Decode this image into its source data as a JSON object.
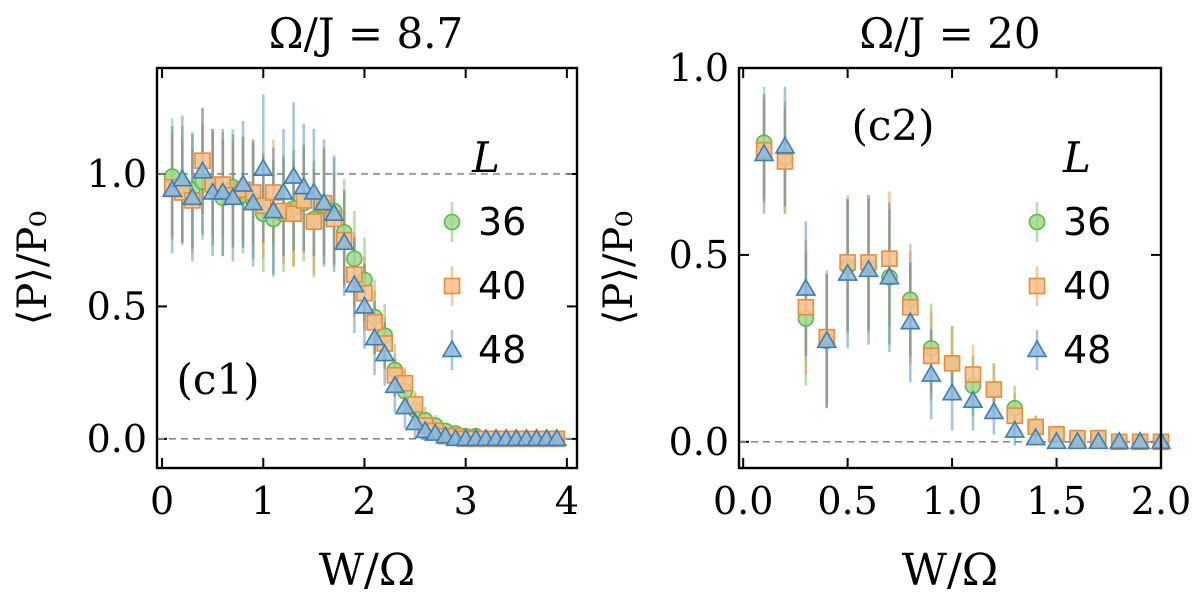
{
  "colors": {
    "s36": "#5db848",
    "s36_fill": "#9fd88c",
    "s40": "#f08a35",
    "s40_fill": "#f8c08c",
    "s48": "#3b7fb3",
    "s48_fill": "#8ab9de",
    "refline": "#8a8a8a"
  },
  "chart_data": [
    {
      "type": "scatter",
      "panel_label": "(c1)",
      "title": "Ω/J = 8.7",
      "xlabel": "W/Ω",
      "ylabel": "⟨P⟩/P₀",
      "xlim": [
        -0.05,
        4.1
      ],
      "ylim": [
        -0.11,
        1.4
      ],
      "xticks": [
        0,
        1,
        2,
        3,
        4
      ],
      "xtick_labels": [
        "0",
        "1",
        "2",
        "3",
        "4"
      ],
      "yticks": [
        0.0,
        0.5,
        1.0
      ],
      "ytick_labels": [
        "0.0",
        "0.5",
        "1.0"
      ],
      "reference_lines": [
        1.0,
        0.0
      ],
      "legend": {
        "title": "L",
        "placement": "right",
        "entries": [
          "36",
          "40",
          "48"
        ]
      },
      "x": [
        0.1,
        0.2,
        0.3,
        0.4,
        0.5,
        0.6,
        0.7,
        0.8,
        0.9,
        1.0,
        1.1,
        1.2,
        1.3,
        1.4,
        1.5,
        1.6,
        1.7,
        1.8,
        1.9,
        2.0,
        2.1,
        2.2,
        2.3,
        2.4,
        2.5,
        2.6,
        2.7,
        2.8,
        2.9,
        3.0,
        3.1,
        3.2,
        3.3,
        3.4,
        3.5,
        3.6,
        3.7,
        3.8,
        3.9
      ],
      "series": [
        {
          "name": "36",
          "marker": "circle",
          "values": [
            0.99,
            0.96,
            0.94,
            0.97,
            0.95,
            0.91,
            0.95,
            0.92,
            0.9,
            0.85,
            0.83,
            0.85,
            0.87,
            0.89,
            0.83,
            0.88,
            0.86,
            0.78,
            0.68,
            0.6,
            0.46,
            0.39,
            0.26,
            0.18,
            0.11,
            0.07,
            0.05,
            0.03,
            0.02,
            0.01,
            0.01,
            0.0,
            0.0,
            0.0,
            0.0,
            0.0,
            0.0,
            0.0,
            0.0
          ],
          "errors": [
            0.22,
            0.22,
            0.22,
            0.22,
            0.22,
            0.22,
            0.22,
            0.22,
            0.22,
            0.22,
            0.22,
            0.22,
            0.22,
            0.22,
            0.22,
            0.22,
            0.2,
            0.2,
            0.18,
            0.16,
            0.14,
            0.12,
            0.1,
            0.08,
            0.06,
            0.05,
            0.04,
            0.02,
            0.01,
            0.01,
            0.01,
            0.0,
            0.0,
            0.0,
            0.0,
            0.0,
            0.0,
            0.0,
            0.0
          ]
        },
        {
          "name": "40",
          "marker": "square",
          "values": [
            0.95,
            0.93,
            0.9,
            1.05,
            0.96,
            0.96,
            0.92,
            0.94,
            0.93,
            0.88,
            0.93,
            0.86,
            0.85,
            0.9,
            0.82,
            0.89,
            0.83,
            0.75,
            0.62,
            0.55,
            0.44,
            0.36,
            0.24,
            0.21,
            0.13,
            0.05,
            0.03,
            0.01,
            0.01,
            0.0,
            0.0,
            0.0,
            0.0,
            0.0,
            0.0,
            0.0,
            0.0,
            0.0,
            0.0
          ],
          "errors": [
            0.2,
            0.2,
            0.2,
            0.2,
            0.2,
            0.2,
            0.2,
            0.2,
            0.2,
            0.2,
            0.2,
            0.2,
            0.2,
            0.2,
            0.2,
            0.2,
            0.18,
            0.18,
            0.16,
            0.14,
            0.12,
            0.1,
            0.08,
            0.06,
            0.05,
            0.04,
            0.02,
            0.01,
            0.01,
            0.0,
            0.0,
            0.0,
            0.0,
            0.0,
            0.0,
            0.0,
            0.0,
            0.0,
            0.0
          ]
        },
        {
          "name": "48",
          "marker": "triangle",
          "values": [
            0.94,
            0.98,
            0.91,
            1.01,
            0.93,
            0.93,
            0.91,
            0.96,
            0.89,
            1.02,
            0.86,
            0.93,
            0.99,
            0.95,
            0.93,
            0.89,
            0.85,
            0.74,
            0.58,
            0.5,
            0.38,
            0.32,
            0.2,
            0.12,
            0.06,
            0.03,
            0.02,
            0.01,
            0.0,
            0.0,
            0.0,
            0.0,
            0.0,
            0.0,
            0.0,
            0.0,
            0.0,
            0.0,
            0.0
          ],
          "errors": [
            0.24,
            0.24,
            0.24,
            0.24,
            0.24,
            0.24,
            0.24,
            0.24,
            0.24,
            0.28,
            0.24,
            0.24,
            0.28,
            0.24,
            0.24,
            0.24,
            0.22,
            0.2,
            0.18,
            0.16,
            0.14,
            0.12,
            0.1,
            0.08,
            0.06,
            0.04,
            0.02,
            0.01,
            0.0,
            0.0,
            0.0,
            0.0,
            0.0,
            0.0,
            0.0,
            0.0,
            0.0,
            0.0,
            0.0
          ]
        }
      ]
    },
    {
      "type": "scatter",
      "panel_label": "(c2)",
      "title": "Ω/J = 20",
      "xlabel": "W/Ω",
      "ylabel": "⟨P⟩/P₀",
      "xlim": [
        -0.02,
        2.0
      ],
      "ylim": [
        -0.07,
        1.0
      ],
      "xticks": [
        0.0,
        0.5,
        1.0,
        1.5,
        2.0
      ],
      "xtick_labels": [
        "0.0",
        "0.5",
        "1.0",
        "1.5",
        "2.0"
      ],
      "yticks": [
        0.0,
        0.5,
        1.0
      ],
      "ytick_labels": [
        "0.0",
        "0.5",
        "1.0"
      ],
      "reference_lines": [
        1.0,
        0.0
      ],
      "legend": {
        "title": "L",
        "placement": "right",
        "entries": [
          "36",
          "40",
          "48"
        ]
      },
      "x": [
        0.1,
        0.2,
        0.3,
        0.4,
        0.5,
        0.6,
        0.7,
        0.8,
        0.9,
        1.0,
        1.1,
        1.2,
        1.3,
        1.4,
        1.5,
        1.6,
        1.7,
        1.8,
        1.9,
        2.0
      ],
      "series": [
        {
          "name": "36",
          "marker": "circle",
          "values": [
            0.8,
            0.76,
            0.33,
            0.27,
            0.47,
            0.47,
            0.44,
            0.38,
            0.25,
            0.21,
            0.15,
            0.14,
            0.09,
            0.04,
            0.02,
            0.01,
            0.01,
            0.0,
            0.0,
            0.0
          ],
          "errors": [
            0.15,
            0.15,
            0.18,
            0.18,
            0.18,
            0.18,
            0.18,
            0.15,
            0.12,
            0.1,
            0.08,
            0.07,
            0.06,
            0.03,
            0.02,
            0.01,
            0.01,
            0.0,
            0.0,
            0.0
          ]
        },
        {
          "name": "40",
          "marker": "square",
          "values": [
            0.78,
            0.75,
            0.36,
            0.28,
            0.48,
            0.48,
            0.49,
            0.36,
            0.23,
            0.21,
            0.18,
            0.14,
            0.07,
            0.04,
            0.02,
            0.01,
            0.01,
            0.0,
            0.0,
            0.0
          ],
          "errors": [
            0.14,
            0.14,
            0.18,
            0.18,
            0.18,
            0.18,
            0.18,
            0.15,
            0.12,
            0.1,
            0.08,
            0.07,
            0.06,
            0.03,
            0.02,
            0.01,
            0.01,
            0.0,
            0.0,
            0.0
          ]
        },
        {
          "name": "48",
          "marker": "triangle",
          "values": [
            0.77,
            0.79,
            0.41,
            0.27,
            0.45,
            0.46,
            0.44,
            0.32,
            0.18,
            0.13,
            0.11,
            0.08,
            0.03,
            0.01,
            0.0,
            0.0,
            0.0,
            0.0,
            0.0,
            0.0
          ],
          "errors": [
            0.16,
            0.16,
            0.18,
            0.18,
            0.2,
            0.2,
            0.2,
            0.16,
            0.12,
            0.1,
            0.08,
            0.06,
            0.04,
            0.02,
            0.0,
            0.0,
            0.0,
            0.0,
            0.0,
            0.0
          ]
        }
      ]
    }
  ]
}
